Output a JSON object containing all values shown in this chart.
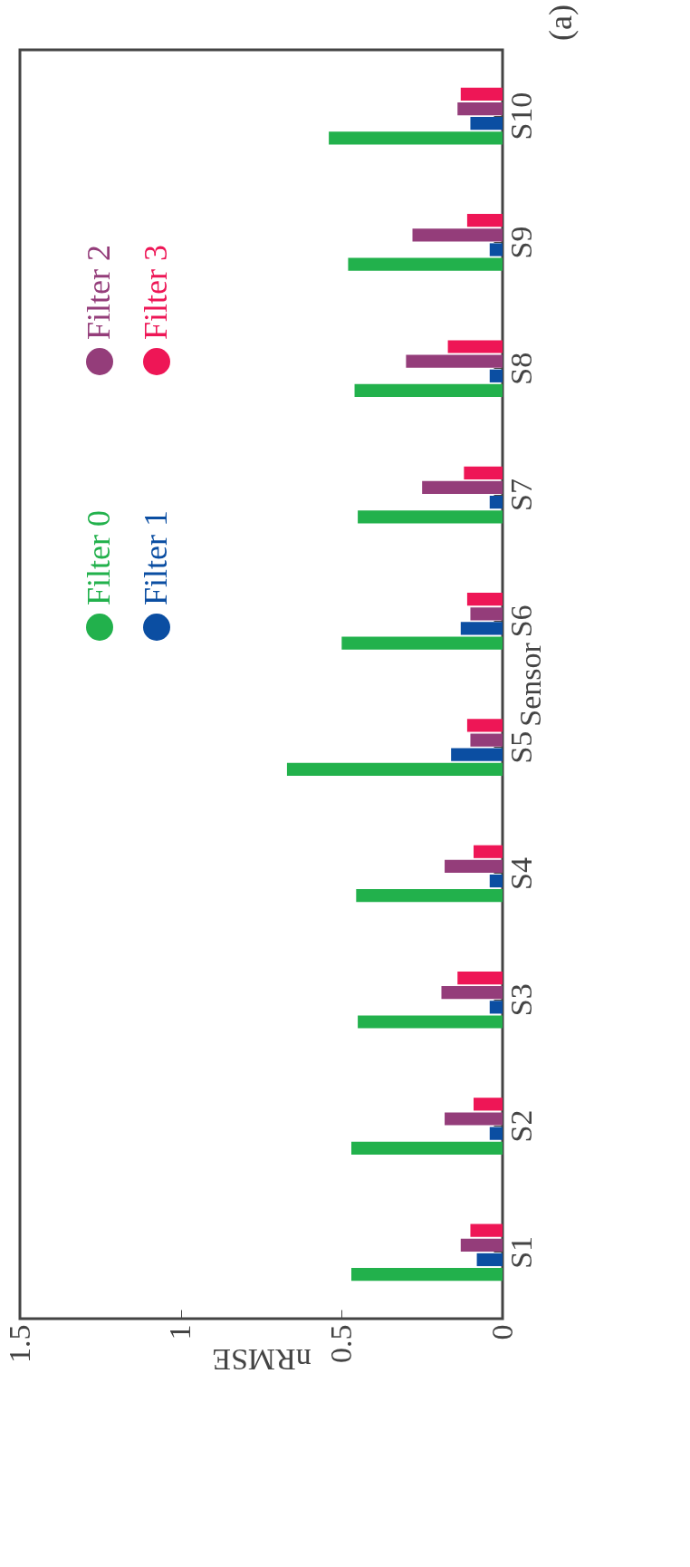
{
  "chart_data": {
    "type": "bar",
    "orientation": "horizontal",
    "title": "(a)",
    "xlabel": "nRMSE",
    "ylabel": "Sensor",
    "categories": [
      "S10",
      "S9",
      "S8",
      "S7",
      "S6",
      "S5",
      "S4",
      "S3",
      "S2",
      "S1"
    ],
    "series": [
      {
        "name": "Filter 0",
        "color": "#22b14c",
        "values": [
          0.54,
          0.48,
          0.46,
          0.45,
          0.5,
          0.67,
          0.455,
          0.45,
          0.47,
          0.47
        ]
      },
      {
        "name": "Filter 1",
        "color": "#0b4ea2",
        "values": [
          0.1,
          0.04,
          0.04,
          0.04,
          0.13,
          0.16,
          0.04,
          0.04,
          0.04,
          0.08
        ]
      },
      {
        "name": "Filter 2",
        "color": "#943d7a",
        "values": [
          0.14,
          0.28,
          0.3,
          0.25,
          0.1,
          0.1,
          0.18,
          0.19,
          0.18,
          0.13
        ]
      },
      {
        "name": "Filter 3",
        "color": "#ee1656",
        "values": [
          0.13,
          0.11,
          0.17,
          0.12,
          0.11,
          0.11,
          0.09,
          0.14,
          0.09,
          0.1
        ]
      }
    ],
    "xlim": [
      1.5,
      0
    ],
    "xticks": [
      1.5,
      1,
      0.5,
      0
    ],
    "grid": false,
    "legend": "top left"
  }
}
